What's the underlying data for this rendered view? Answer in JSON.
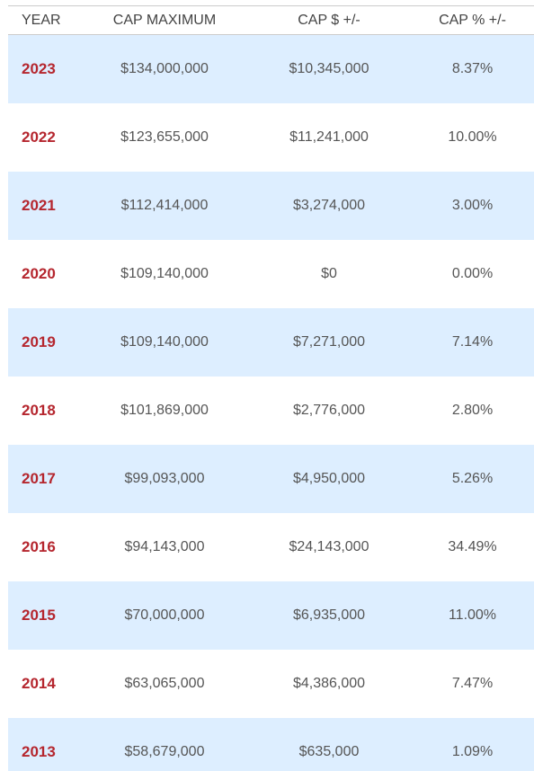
{
  "table": {
    "header": [
      "YEAR",
      "CAP MAXIMUM",
      "CAP $ +/-",
      "CAP % +/-"
    ],
    "rows": [
      [
        "2023",
        "$134,000,000",
        "$10,345,000",
        "8.37%"
      ],
      [
        "2022",
        "$123,655,000",
        "$11,241,000",
        "10.00%"
      ],
      [
        "2021",
        "$112,414,000",
        "$3,274,000",
        "3.00%"
      ],
      [
        "2020",
        "$109,140,000",
        "$0",
        "0.00%"
      ],
      [
        "2019",
        "$109,140,000",
        "$7,271,000",
        "7.14%"
      ],
      [
        "2018",
        "$101,869,000",
        "$2,776,000",
        "2.80%"
      ],
      [
        "2017",
        "$99,093,000",
        "$4,950,000",
        "5.26%"
      ],
      [
        "2016",
        "$94,143,000",
        "$24,143,000",
        "34.49%"
      ],
      [
        "2015",
        "$70,000,000",
        "$6,935,000",
        "11.00%"
      ],
      [
        "2014",
        "$63,065,000",
        "$4,386,000",
        "7.47%"
      ],
      [
        "2013",
        "$58,679,000",
        "$635,000",
        "1.09%"
      ]
    ]
  }
}
